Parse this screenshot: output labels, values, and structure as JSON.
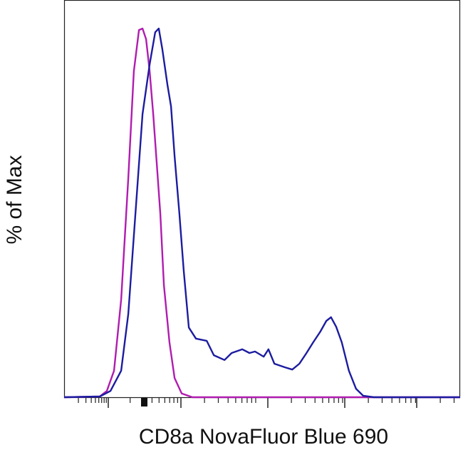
{
  "chart_data": {
    "type": "line",
    "x_label": "CD8a NovaFluor Blue 690",
    "y_label": "% of Max",
    "xlim": [
      0,
      100
    ],
    "ylim": [
      0,
      100
    ],
    "series": [
      {
        "color": "#b01cb0",
        "x": [
          0,
          9.0,
          10.8,
          12.6,
          14.4,
          16.2,
          17.6,
          18.9,
          19.8,
          20.7,
          21.6,
          22.5,
          23.4,
          24.3,
          25.2,
          26.6,
          27.9,
          29.7,
          32.4,
          100
        ],
        "values": [
          0,
          0.2,
          1.7,
          7.2,
          26.5,
          59.4,
          88.4,
          99.6,
          100,
          97.1,
          88.4,
          76.8,
          63.3,
          49.7,
          30.4,
          14.9,
          5.2,
          1.0,
          0,
          0
        ]
      },
      {
        "color": "#1c1ca0",
        "x": [
          0,
          9.0,
          11.7,
          14.4,
          16.2,
          18.0,
          19.8,
          21.6,
          23.0,
          23.9,
          24.8,
          26.1,
          27.0,
          27.9,
          29.1,
          30.2,
          31.5,
          33.3,
          36.0,
          37.8,
          40.5,
          42.3,
          45.0,
          46.8,
          48.2,
          50.4,
          51.6,
          53.1,
          55.8,
          57.6,
          59.4,
          61.2,
          62.9,
          64.7,
          66.2,
          67.4,
          68.7,
          70.1,
          71.9,
          73.7,
          75.5,
          78.2,
          100
        ],
        "values": [
          0,
          0.2,
          1.7,
          7.2,
          22.6,
          49.7,
          76.8,
          90.3,
          99.0,
          100,
          94.4,
          84.7,
          78.9,
          65.4,
          49.9,
          34.4,
          18.9,
          15.9,
          15.3,
          11.4,
          10.1,
          12.0,
          13.0,
          12.0,
          12.4,
          11.0,
          13.0,
          9.1,
          8.1,
          7.5,
          9.1,
          12.0,
          14.9,
          17.8,
          20.7,
          21.7,
          19.1,
          14.9,
          7.2,
          2.3,
          0.4,
          0,
          0
        ]
      }
    ]
  }
}
